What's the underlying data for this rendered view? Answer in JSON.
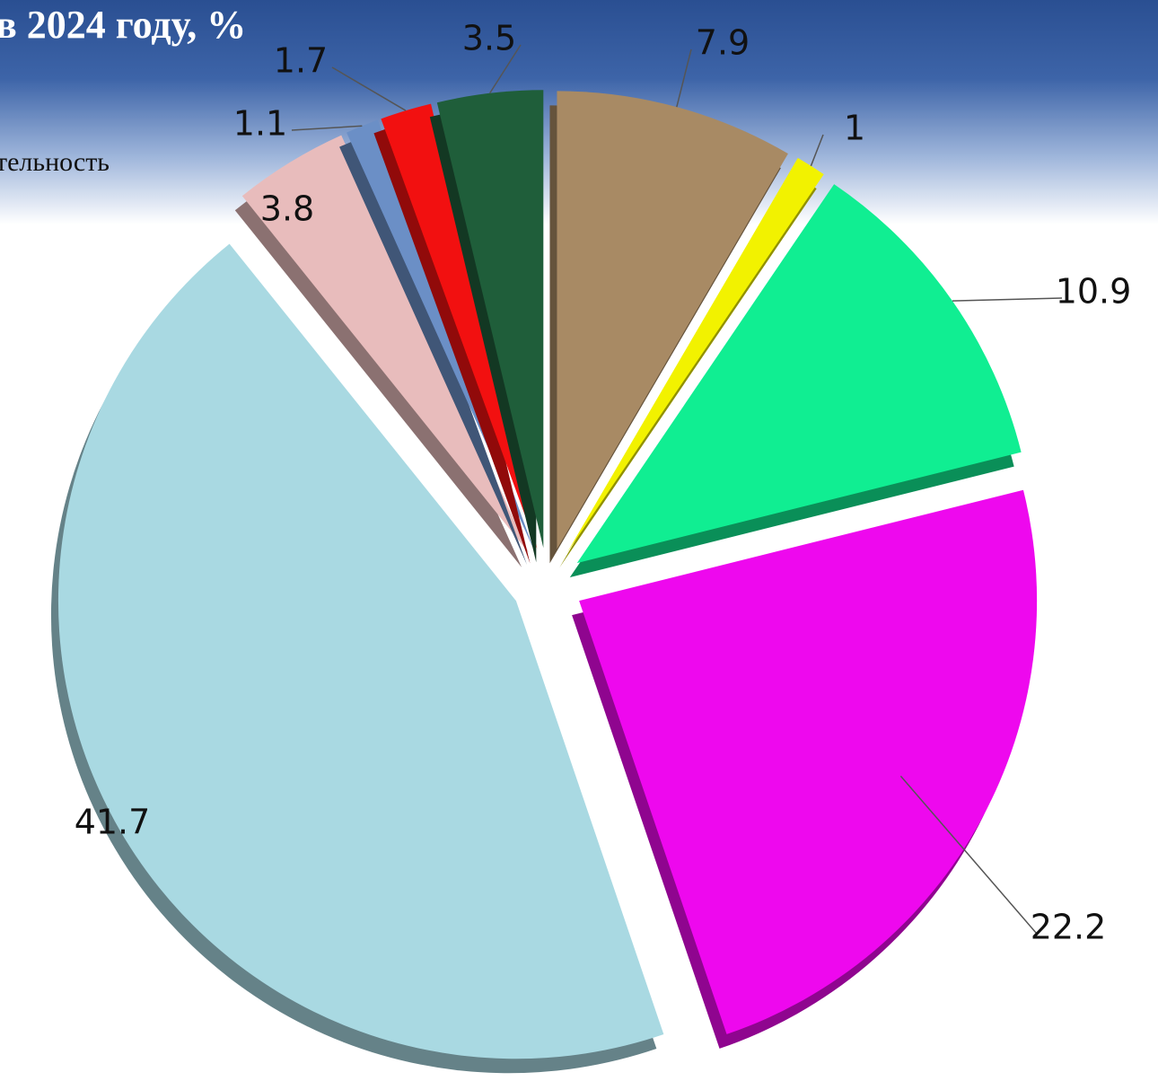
{
  "chart_data": {
    "type": "pie",
    "title": "в 2024 году, %",
    "legend_text": "тельность",
    "values": [
      7.9,
      1.0,
      10.9,
      22.2,
      41.7,
      3.8,
      1.1,
      1.7,
      3.5
    ],
    "colors": [
      "#a88a64",
      "#f2f200",
      "#10ee92",
      "#ee08ee",
      "#a9d9e2",
      "#e8bcbc",
      "#6b8fc6",
      "#f21010",
      "#1f5e3a"
    ]
  }
}
